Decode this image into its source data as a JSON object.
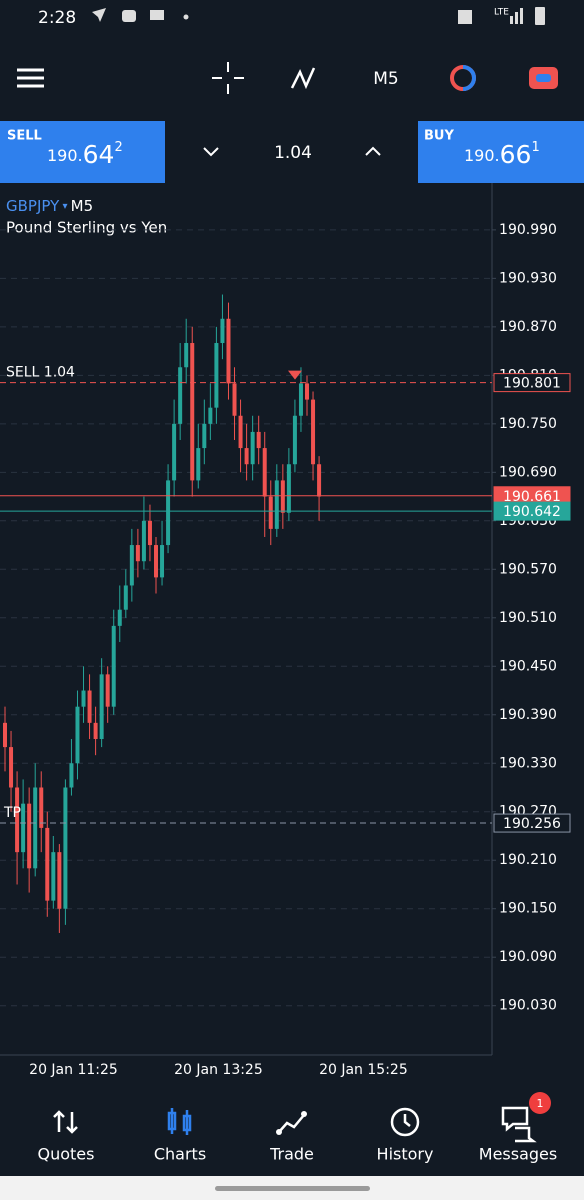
{
  "status_bar": {
    "time": "2:28",
    "network": "LTE"
  },
  "toolbar": {
    "timeframe": "M5"
  },
  "trade_panel": {
    "sell_label": "SELL",
    "sell_price": {
      "prefix": "190.",
      "big": "64",
      "sup": "2"
    },
    "volume": "1.04",
    "buy_label": "BUY",
    "buy_price": {
      "prefix": "190.",
      "big": "66",
      "sup": "1"
    }
  },
  "chart_data": {
    "type": "candlestick",
    "symbol": "GBPJPY",
    "timeframe": "M5",
    "subtitle": "Pound Sterling vs Yen",
    "up_color": "#26a69a",
    "down_color": "#ef5350",
    "grid": true,
    "categories": [
      null,
      null,
      null,
      null,
      "20 Jan 11:25",
      null,
      null,
      null,
      null,
      null,
      null,
      null,
      null,
      null,
      null,
      null,
      null,
      null,
      null,
      null,
      null,
      null,
      null,
      null,
      null,
      null,
      null,
      null,
      "20 Jan 13:25",
      null,
      null,
      null,
      null,
      null,
      null,
      null,
      null,
      null,
      null,
      null,
      null,
      null,
      null,
      null,
      null,
      null,
      null,
      null,
      null,
      null,
      null,
      null,
      "20 Jan 15:25"
    ],
    "open": [
      190.38,
      190.35,
      190.3,
      190.22,
      190.28,
      190.2,
      190.3,
      190.25,
      190.16,
      190.22,
      190.15,
      190.3,
      190.33,
      190.4,
      190.42,
      190.38,
      190.36,
      190.44,
      190.4,
      190.5,
      190.52,
      190.55,
      190.6,
      190.58,
      190.63,
      190.6,
      190.56,
      190.6,
      190.68,
      190.75,
      190.82,
      190.85,
      190.68,
      190.72,
      190.75,
      190.77,
      190.85,
      190.88,
      190.8,
      190.76,
      190.72,
      190.7,
      190.74,
      190.72,
      190.66,
      190.62,
      190.68,
      190.64,
      190.7,
      190.76,
      190.8,
      190.78,
      190.7
    ],
    "high": [
      190.4,
      190.37,
      190.32,
      190.31,
      190.3,
      190.33,
      190.32,
      190.27,
      190.24,
      190.23,
      190.31,
      190.36,
      190.42,
      190.45,
      190.44,
      190.4,
      190.46,
      190.45,
      190.52,
      190.55,
      190.57,
      190.62,
      190.62,
      190.66,
      190.65,
      190.61,
      190.63,
      190.7,
      190.78,
      190.85,
      190.88,
      190.87,
      190.75,
      190.78,
      190.8,
      190.87,
      190.91,
      190.9,
      190.82,
      190.78,
      190.75,
      190.76,
      190.76,
      190.74,
      190.68,
      190.7,
      190.7,
      190.72,
      190.78,
      190.82,
      190.81,
      190.79,
      190.71
    ],
    "low": [
      190.32,
      190.27,
      190.18,
      190.2,
      190.17,
      190.19,
      190.22,
      190.14,
      190.15,
      190.12,
      190.13,
      190.29,
      190.31,
      190.38,
      190.36,
      190.34,
      190.35,
      190.38,
      190.39,
      190.48,
      190.51,
      190.53,
      190.56,
      190.57,
      190.58,
      190.54,
      190.55,
      190.59,
      190.66,
      190.73,
      190.8,
      190.66,
      190.67,
      190.7,
      190.73,
      190.75,
      190.83,
      190.78,
      190.73,
      190.69,
      190.68,
      190.68,
      190.7,
      190.61,
      190.6,
      190.61,
      190.62,
      190.63,
      190.69,
      190.74,
      190.76,
      190.68,
      190.63
    ],
    "close": [
      190.35,
      190.3,
      190.22,
      190.28,
      190.2,
      190.3,
      190.25,
      190.16,
      190.22,
      190.15,
      190.3,
      190.33,
      190.4,
      190.42,
      190.38,
      190.36,
      190.44,
      190.4,
      190.5,
      190.52,
      190.55,
      190.6,
      190.58,
      190.63,
      190.6,
      190.56,
      190.6,
      190.68,
      190.75,
      190.82,
      190.85,
      190.68,
      190.72,
      190.75,
      190.77,
      190.85,
      190.88,
      190.8,
      190.76,
      190.72,
      190.7,
      190.74,
      190.72,
      190.66,
      190.62,
      190.68,
      190.64,
      190.7,
      190.76,
      190.8,
      190.78,
      190.7,
      190.66
    ],
    "ylim": [
      189.969,
      191.048
    ],
    "yticks": [
      {
        "value": 190.99,
        "label": "190.990"
      },
      {
        "value": 190.93,
        "label": "190.930"
      },
      {
        "value": 190.87,
        "label": "190.870"
      },
      {
        "value": 190.81,
        "label": "190.810"
      },
      {
        "value": 190.75,
        "label": "190.750"
      },
      {
        "value": 190.69,
        "label": "190.690"
      },
      {
        "value": 190.63,
        "label": "190.630"
      },
      {
        "value": 190.57,
        "label": "190.570"
      },
      {
        "value": 190.51,
        "label": "190.510"
      },
      {
        "value": 190.45,
        "label": "190.450"
      },
      {
        "value": 190.39,
        "label": "190.390"
      },
      {
        "value": 190.33,
        "label": "190.330"
      },
      {
        "value": 190.27,
        "label": "190.270"
      },
      {
        "value": 190.21,
        "label": "190.210"
      },
      {
        "value": 190.15,
        "label": "190.150"
      },
      {
        "value": 190.09,
        "label": "190.090"
      },
      {
        "value": 190.03,
        "label": "190.030"
      }
    ],
    "price_lines": [
      {
        "value": 190.801,
        "color": "#ef5350",
        "dashed": true,
        "filled": false
      },
      {
        "value": 190.661,
        "color": "#ef5350",
        "dashed": false,
        "filled": true
      },
      {
        "value": 190.642,
        "color": "#26a69a",
        "dashed": false,
        "filled": true
      },
      {
        "value": 190.256,
        "color": "#8a94a6",
        "dashed": true,
        "filled": false
      }
    ],
    "order_label": "SELL 1.04",
    "tp_label": "TP"
  },
  "nav": {
    "items": [
      "Quotes",
      "Charts",
      "Trade",
      "History",
      "Messages"
    ],
    "active": 1,
    "badge": "1"
  }
}
